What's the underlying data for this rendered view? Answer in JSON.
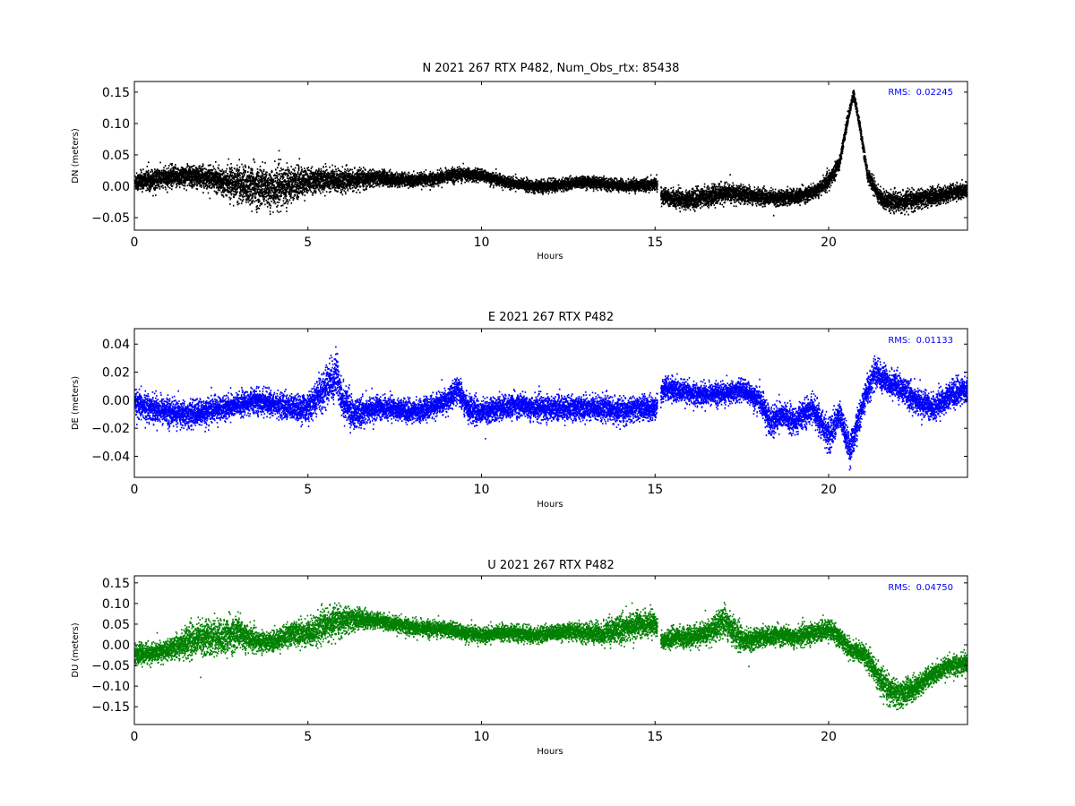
{
  "chart_data": [
    {
      "type": "scatter",
      "title": "N 2021 267 RTX  P482, Num_Obs_rtx: 85438",
      "xlabel": "Hours",
      "ylabel": "DN (meters)",
      "xlim": [
        0,
        24
      ],
      "ylim": [
        -0.07,
        0.167
      ],
      "x_ticks": [
        0,
        5,
        10,
        15,
        20
      ],
      "y_ticks": [
        -0.05,
        0.0,
        0.05,
        0.1,
        0.15
      ],
      "y_tick_labels": [
        "−0.05",
        "0.00",
        "0.05",
        "0.10",
        "0.15"
      ],
      "color": "#000000",
      "annotation": {
        "label": "RMS:",
        "value": "0.02245",
        "color": "#0000ff",
        "position": "top-right"
      },
      "series": [
        {
          "x": [
            0,
            0.5,
            1,
            1.5,
            2,
            2.5,
            3,
            3.5,
            4,
            4.5,
            5,
            5.5,
            6,
            6.5,
            7,
            7.5,
            8,
            8.5,
            9,
            9.5,
            10,
            10.5,
            11,
            11.5,
            12,
            12.5,
            13,
            13.5,
            14,
            14.5,
            15,
            15.2,
            15.5,
            16,
            16.5,
            17,
            17.5,
            18,
            18.5,
            19,
            19.5,
            20,
            20.3,
            20.5,
            20.7,
            20.9,
            21.1,
            21.5,
            22,
            22.5,
            23,
            23.5,
            24
          ],
          "y": [
            0.008,
            0.012,
            0.015,
            0.018,
            0.015,
            0.01,
            0.005,
            0.0,
            -0.002,
            0.005,
            0.01,
            0.012,
            0.01,
            0.012,
            0.015,
            0.012,
            0.01,
            0.012,
            0.018,
            0.02,
            0.018,
            0.01,
            0.005,
            0.0,
            0.002,
            0.005,
            0.008,
            0.005,
            0.002,
            0.002,
            0.005,
            -0.015,
            -0.018,
            -0.02,
            -0.015,
            -0.01,
            -0.012,
            -0.015,
            -0.018,
            -0.015,
            -0.01,
            0.01,
            0.04,
            0.1,
            0.15,
            0.09,
            0.02,
            -0.02,
            -0.025,
            -0.02,
            -0.015,
            -0.01,
            -0.005
          ],
          "spread": [
            0.015,
            0.017,
            0.018,
            0.018,
            0.018,
            0.02,
            0.03,
            0.035,
            0.035,
            0.03,
            0.02,
            0.02,
            0.018,
            0.015,
            0.013,
            0.012,
            0.011,
            0.011,
            0.011,
            0.011,
            0.01,
            0.01,
            0.01,
            0.01,
            0.01,
            0.01,
            0.01,
            0.01,
            0.01,
            0.01,
            0.01,
            0.013,
            0.015,
            0.016,
            0.016,
            0.016,
            0.015,
            0.013,
            0.013,
            0.013,
            0.013,
            0.013,
            0.012,
            0.01,
            0.008,
            0.01,
            0.012,
            0.015,
            0.016,
            0.016,
            0.015,
            0.014,
            0.013
          ]
        }
      ]
    },
    {
      "type": "scatter",
      "title": "E 2021 267 RTX  P482",
      "xlabel": "Hours",
      "ylabel": "DE (meters)",
      "xlim": [
        0,
        24
      ],
      "ylim": [
        -0.055,
        0.051
      ],
      "x_ticks": [
        0,
        5,
        10,
        15,
        20
      ],
      "y_ticks": [
        -0.04,
        -0.02,
        0.0,
        0.02,
        0.04
      ],
      "y_tick_labels": [
        "−0.04",
        "−0.02",
        "0.00",
        "0.02",
        "0.04"
      ],
      "color": "#0000ff",
      "annotation": {
        "label": "RMS:",
        "value": "0.01133",
        "color": "#0000ff",
        "position": "top-right"
      },
      "series": [
        {
          "x": [
            0,
            0.5,
            1,
            1.5,
            2,
            2.5,
            3,
            3.5,
            4,
            4.5,
            5,
            5.5,
            5.8,
            6,
            6.3,
            6.5,
            7,
            7.5,
            8,
            8.5,
            9,
            9.3,
            9.6,
            10,
            10.5,
            11,
            11.5,
            12,
            12.5,
            13,
            13.5,
            14,
            14.5,
            15,
            15.2,
            15.5,
            16,
            16.5,
            17,
            17.5,
            18,
            18.3,
            18.6,
            19,
            19.5,
            20,
            20.3,
            20.6,
            21,
            21.3,
            21.6,
            22,
            22.5,
            23,
            23.5,
            24
          ],
          "y": [
            -0.003,
            -0.005,
            -0.008,
            -0.01,
            -0.008,
            -0.005,
            -0.003,
            0.0,
            -0.002,
            -0.005,
            -0.005,
            0.01,
            0.018,
            0.0,
            -0.01,
            -0.008,
            -0.005,
            -0.005,
            -0.008,
            -0.005,
            0.0,
            0.008,
            -0.005,
            -0.008,
            -0.005,
            -0.003,
            -0.005,
            -0.005,
            -0.005,
            -0.005,
            -0.005,
            -0.008,
            -0.005,
            -0.005,
            0.008,
            0.008,
            0.005,
            0.005,
            0.005,
            0.008,
            0.0,
            -0.015,
            -0.01,
            -0.015,
            -0.005,
            -0.025,
            -0.01,
            -0.035,
            0.0,
            0.02,
            0.015,
            0.01,
            0.0,
            -0.005,
            0.005,
            0.008
          ],
          "spread": [
            0.01,
            0.01,
            0.01,
            0.01,
            0.01,
            0.009,
            0.009,
            0.009,
            0.009,
            0.01,
            0.01,
            0.015,
            0.018,
            0.014,
            0.012,
            0.01,
            0.009,
            0.008,
            0.008,
            0.008,
            0.009,
            0.01,
            0.01,
            0.009,
            0.009,
            0.009,
            0.009,
            0.009,
            0.009,
            0.009,
            0.009,
            0.009,
            0.009,
            0.009,
            0.009,
            0.009,
            0.008,
            0.008,
            0.008,
            0.008,
            0.009,
            0.012,
            0.01,
            0.01,
            0.01,
            0.013,
            0.01,
            0.012,
            0.01,
            0.012,
            0.01,
            0.01,
            0.01,
            0.01,
            0.01,
            0.01
          ]
        }
      ]
    },
    {
      "type": "scatter",
      "title": "U 2021 267 RTX  P482",
      "xlabel": "Hours",
      "ylabel": "DU (meters)",
      "xlim": [
        0,
        24
      ],
      "ylim": [
        -0.193,
        0.167
      ],
      "x_ticks": [
        0,
        5,
        10,
        15,
        20
      ],
      "y_ticks": [
        -0.15,
        -0.1,
        -0.05,
        0.0,
        0.05,
        0.1,
        0.15
      ],
      "y_tick_labels": [
        "−0.15",
        "−0.10",
        "−0.05",
        "0.00",
        "0.05",
        "0.10",
        "0.15"
      ],
      "color": "#008000",
      "annotation": {
        "label": "RMS:",
        "value": "0.04750",
        "color": "#0000ff",
        "position": "top-right"
      },
      "series": [
        {
          "x": [
            0,
            0.5,
            1,
            1.5,
            2,
            2.5,
            3,
            3.5,
            4,
            4.5,
            5,
            5.5,
            6,
            6.5,
            7,
            7.5,
            8,
            8.5,
            9,
            9.5,
            10,
            10.5,
            11,
            11.5,
            12,
            12.5,
            13,
            13.5,
            14,
            14.5,
            15,
            15.2,
            15.5,
            16,
            16.5,
            17,
            17.3,
            17.6,
            18,
            18.5,
            19,
            19.5,
            20,
            20.3,
            20.6,
            21,
            21.3,
            21.6,
            22,
            22.5,
            23,
            23.5,
            24
          ],
          "y": [
            -0.02,
            -0.02,
            -0.01,
            0.01,
            0.02,
            0.02,
            0.03,
            0.01,
            0.01,
            0.03,
            0.03,
            0.05,
            0.06,
            0.065,
            0.06,
            0.05,
            0.045,
            0.04,
            0.04,
            0.03,
            0.025,
            0.03,
            0.03,
            0.025,
            0.03,
            0.035,
            0.03,
            0.03,
            0.04,
            0.05,
            0.055,
            0.01,
            0.02,
            0.02,
            0.03,
            0.06,
            0.03,
            0.01,
            0.02,
            0.025,
            0.02,
            0.03,
            0.04,
            0.02,
            -0.01,
            -0.02,
            -0.06,
            -0.1,
            -0.12,
            -0.1,
            -0.07,
            -0.05,
            -0.04
          ],
          "spread": [
            0.025,
            0.025,
            0.025,
            0.04,
            0.045,
            0.045,
            0.045,
            0.025,
            0.025,
            0.03,
            0.035,
            0.04,
            0.035,
            0.025,
            0.02,
            0.02,
            0.02,
            0.02,
            0.02,
            0.02,
            0.02,
            0.02,
            0.02,
            0.02,
            0.02,
            0.02,
            0.025,
            0.03,
            0.035,
            0.035,
            0.03,
            0.02,
            0.025,
            0.025,
            0.03,
            0.04,
            0.035,
            0.03,
            0.025,
            0.025,
            0.025,
            0.025,
            0.025,
            0.025,
            0.025,
            0.025,
            0.03,
            0.035,
            0.035,
            0.03,
            0.025,
            0.025,
            0.025
          ]
        }
      ]
    }
  ]
}
